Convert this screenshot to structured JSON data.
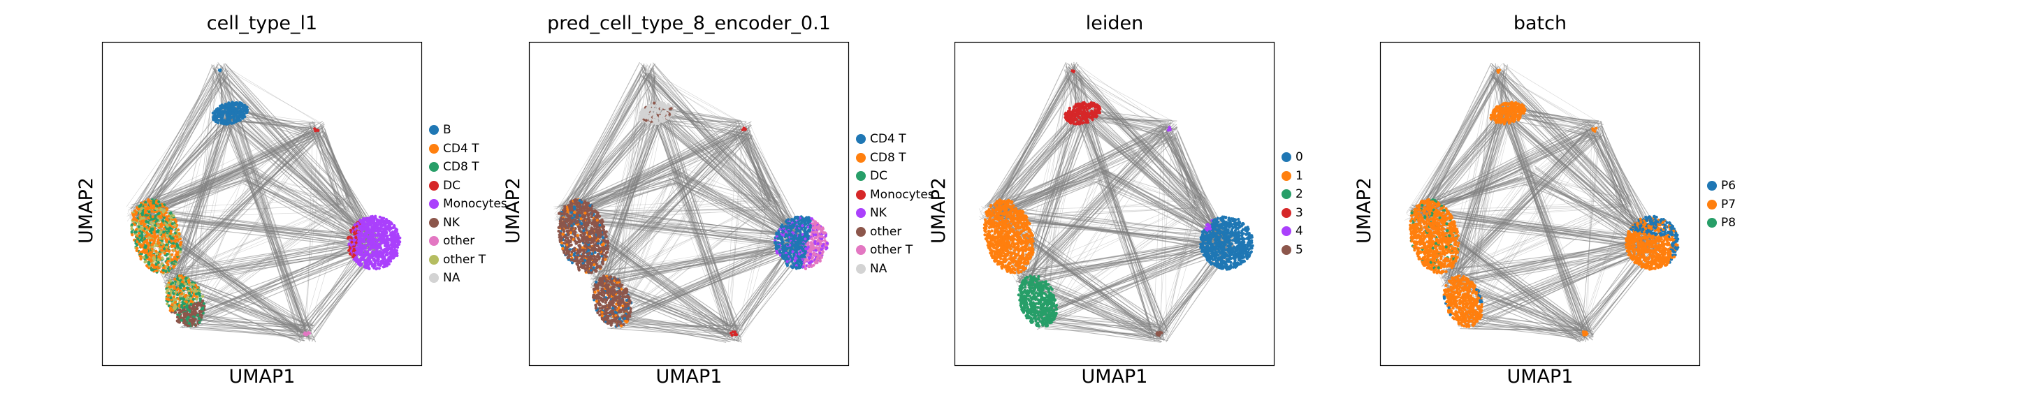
{
  "panels": [
    {
      "title": "cell_type_l1",
      "xlabel": "UMAP1",
      "ylabel": "UMAP2",
      "legend": [
        {
          "label": "B",
          "color": "#1f77b4"
        },
        {
          "label": "CD4 T",
          "color": "#ff7f0e"
        },
        {
          "label": "CD8 T",
          "color": "#279e68"
        },
        {
          "label": "DC",
          "color": "#d62728"
        },
        {
          "label": "Monocytes",
          "color": "#aa40fc"
        },
        {
          "label": "NK",
          "color": "#8c564b"
        },
        {
          "label": "other",
          "color": "#e377c2"
        },
        {
          "label": "other T",
          "color": "#b5bd61"
        },
        {
          "label": "NA",
          "color": "#d3d3d3"
        }
      ]
    },
    {
      "title": "pred_cell_type_8_encoder_0.1",
      "xlabel": "UMAP1",
      "ylabel": "UMAP2",
      "legend": [
        {
          "label": "CD4 T",
          "color": "#1f77b4"
        },
        {
          "label": "CD8 T",
          "color": "#ff7f0e"
        },
        {
          "label": "DC",
          "color": "#279e68"
        },
        {
          "label": "Monocytes",
          "color": "#d62728"
        },
        {
          "label": "NK",
          "color": "#aa40fc"
        },
        {
          "label": "other",
          "color": "#8c564b"
        },
        {
          "label": "other T",
          "color": "#e377c2"
        },
        {
          "label": "NA",
          "color": "#d3d3d3"
        }
      ]
    },
    {
      "title": "leiden",
      "xlabel": "UMAP1",
      "ylabel": "UMAP2",
      "legend": [
        {
          "label": "0",
          "color": "#1f77b4"
        },
        {
          "label": "1",
          "color": "#ff7f0e"
        },
        {
          "label": "2",
          "color": "#279e68"
        },
        {
          "label": "3",
          "color": "#d62728"
        },
        {
          "label": "4",
          "color": "#aa40fc"
        },
        {
          "label": "5",
          "color": "#8c564b"
        }
      ]
    },
    {
      "title": "batch",
      "xlabel": "UMAP1",
      "ylabel": "UMAP2",
      "legend": [
        {
          "label": "P6",
          "color": "#1f77b4"
        },
        {
          "label": "P7",
          "color": "#ff7f0e"
        },
        {
          "label": "P8",
          "color": "#279e68"
        }
      ]
    }
  ],
  "chart_data": [
    {
      "type": "scatter",
      "title": "cell_type_l1",
      "xlabel": "UMAP1",
      "ylabel": "UMAP2",
      "series": [
        {
          "name": "B",
          "color": "#1f77b4"
        },
        {
          "name": "CD4 T",
          "color": "#ff7f0e"
        },
        {
          "name": "CD8 T",
          "color": "#279e68"
        },
        {
          "name": "DC",
          "color": "#d62728"
        },
        {
          "name": "Monocytes",
          "color": "#aa40fc"
        },
        {
          "name": "NK",
          "color": "#8c564b"
        },
        {
          "name": "other",
          "color": "#e377c2"
        },
        {
          "name": "other T",
          "color": "#b5bd61"
        },
        {
          "name": "NA",
          "color": "#d3d3d3"
        }
      ],
      "grid": false,
      "axis_ticks": false,
      "legend_position": "right",
      "edges_color": "#808080"
    },
    {
      "type": "scatter",
      "title": "pred_cell_type_8_encoder_0.1",
      "xlabel": "UMAP1",
      "ylabel": "UMAP2",
      "series": [
        {
          "name": "CD4 T",
          "color": "#1f77b4"
        },
        {
          "name": "CD8 T",
          "color": "#ff7f0e"
        },
        {
          "name": "DC",
          "color": "#279e68"
        },
        {
          "name": "Monocytes",
          "color": "#d62728"
        },
        {
          "name": "NK",
          "color": "#aa40fc"
        },
        {
          "name": "other",
          "color": "#8c564b"
        },
        {
          "name": "other T",
          "color": "#e377c2"
        },
        {
          "name": "NA",
          "color": "#d3d3d3"
        }
      ],
      "grid": false,
      "axis_ticks": false,
      "legend_position": "right",
      "edges_color": "#808080"
    },
    {
      "type": "scatter",
      "title": "leiden",
      "xlabel": "UMAP1",
      "ylabel": "UMAP2",
      "series": [
        {
          "name": "0",
          "color": "#1f77b4"
        },
        {
          "name": "1",
          "color": "#ff7f0e"
        },
        {
          "name": "2",
          "color": "#279e68"
        },
        {
          "name": "3",
          "color": "#d62728"
        },
        {
          "name": "4",
          "color": "#aa40fc"
        },
        {
          "name": "5",
          "color": "#8c564b"
        }
      ],
      "grid": false,
      "axis_ticks": false,
      "legend_position": "right",
      "edges_color": "#808080"
    },
    {
      "type": "scatter",
      "title": "batch",
      "xlabel": "UMAP1",
      "ylabel": "UMAP2",
      "series": [
        {
          "name": "P6",
          "color": "#1f77b4"
        },
        {
          "name": "P7",
          "color": "#ff7f0e"
        },
        {
          "name": "P8",
          "color": "#279e68"
        }
      ],
      "grid": false,
      "axis_ticks": false,
      "legend_position": "right",
      "edges_color": "#808080"
    }
  ]
}
